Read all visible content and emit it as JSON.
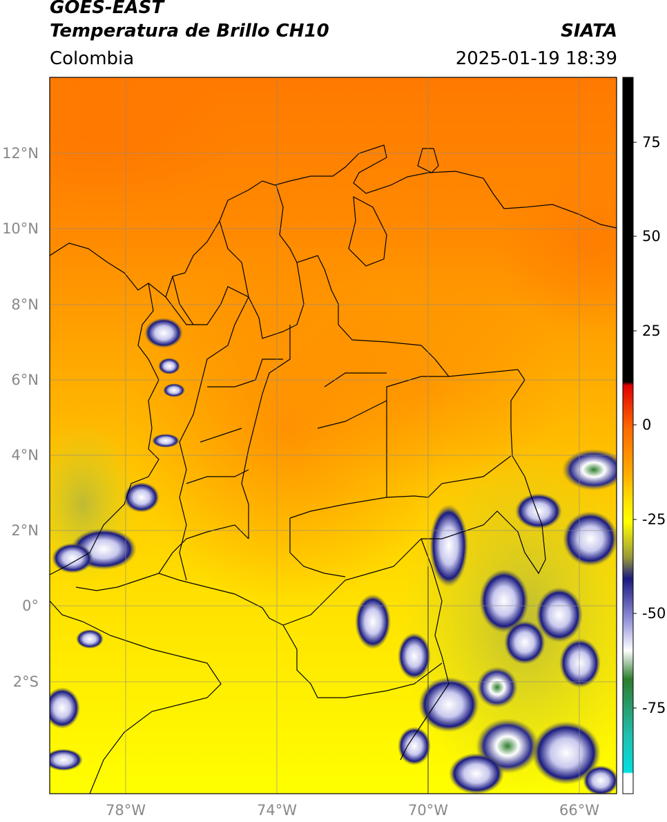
{
  "header": {
    "satellite": "GOES-EAST",
    "product": "Temperatura de Brillo CH10",
    "agency": "SIATA",
    "region": "Colombia",
    "datetime": "2025-01-19 18:39"
  },
  "map": {
    "lon_range": [
      -80,
      -65
    ],
    "lat_range": [
      -5,
      14
    ],
    "lat_ticks": [
      {
        "value": 12,
        "label": "12°N"
      },
      {
        "value": 10,
        "label": "10°N"
      },
      {
        "value": 8,
        "label": "8°N"
      },
      {
        "value": 6,
        "label": "6°N"
      },
      {
        "value": 4,
        "label": "4°N"
      },
      {
        "value": 2,
        "label": "2°N"
      },
      {
        "value": 0,
        "label": "0°"
      },
      {
        "value": -2,
        "label": "2°S"
      }
    ],
    "lon_ticks": [
      {
        "value": -78,
        "label": "78°W"
      },
      {
        "value": -74,
        "label": "74°W"
      },
      {
        "value": -70,
        "label": "70°W"
      },
      {
        "value": -66,
        "label": "66°W"
      }
    ],
    "grid": true
  },
  "colorbar": {
    "range": [
      -100,
      90
    ],
    "ticks": [
      {
        "value": 75,
        "label": "75"
      },
      {
        "value": 50,
        "label": "50"
      },
      {
        "value": 25,
        "label": "25"
      },
      {
        "value": 0,
        "label": "0"
      },
      {
        "value": -25,
        "label": "-25"
      },
      {
        "value": -50,
        "label": "-50"
      },
      {
        "value": -75,
        "label": "-75"
      }
    ],
    "colors": {
      "warm_black": "#000000",
      "red": "#e00000",
      "orange": "#ff8c00",
      "yellow": "#ffff00",
      "olive": "#9a9a3a",
      "navy": "#1a1a80",
      "white": "#ffffff",
      "green": "#2e7d2e",
      "teal": "#20c0b0",
      "cyan": "#00e0e0"
    }
  }
}
